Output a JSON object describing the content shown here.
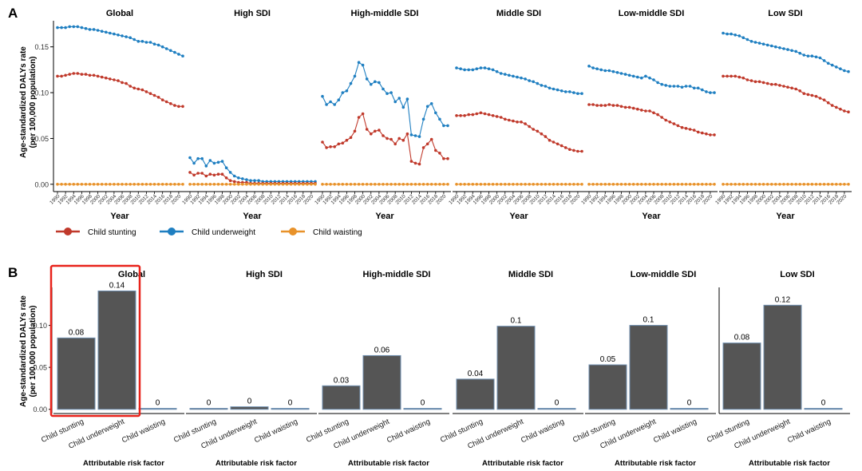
{
  "panel_labels": {
    "a": "A",
    "b": "B"
  },
  "colors": {
    "stunting": "#c0392b",
    "underweight": "#1f7fc1",
    "waisting": "#e8922a",
    "bar": "#555555",
    "bar_edge": "#6f8fb0",
    "highlight": "#e8231b"
  },
  "legend": {
    "stunting": "Child stunting",
    "underweight": "Child underweight",
    "waisting": "Child waisting"
  },
  "chart_data": [
    {
      "type": "line",
      "panel": "A",
      "ylabel_line1": "Age-standardized DALYs rate",
      "ylabel_line2": "(per 100,000 population)",
      "xlabel": "Year",
      "ylim": [
        -0.008,
        0.175
      ],
      "yticks": [
        0.0,
        0.05,
        0.1,
        0.15
      ],
      "ytick_labels": [
        "0.00",
        "0.05",
        "0.10",
        "0.15"
      ],
      "x": [
        1990,
        1991,
        1992,
        1993,
        1994,
        1995,
        1996,
        1997,
        1998,
        1999,
        2000,
        2001,
        2002,
        2003,
        2004,
        2005,
        2006,
        2007,
        2008,
        2009,
        2010,
        2011,
        2012,
        2013,
        2014,
        2015,
        2016,
        2017,
        2018,
        2019,
        2020,
        2021
      ],
      "xtick_labels": [
        "1990",
        "1992",
        "1994",
        "1996",
        "1998",
        "2000",
        "2002",
        "2004",
        "2006",
        "2008",
        "2010",
        "2012",
        "2014",
        "2016",
        "2018",
        "2020"
      ],
      "facets": [
        {
          "title": "Global",
          "stunting": [
            0.118,
            0.118,
            0.119,
            0.12,
            0.121,
            0.121,
            0.12,
            0.12,
            0.119,
            0.119,
            0.118,
            0.117,
            0.116,
            0.115,
            0.114,
            0.113,
            0.111,
            0.11,
            0.107,
            0.105,
            0.104,
            0.103,
            0.101,
            0.099,
            0.097,
            0.095,
            0.092,
            0.09,
            0.088,
            0.086,
            0.085,
            0.085
          ],
          "underweight": [
            0.171,
            0.171,
            0.171,
            0.172,
            0.172,
            0.172,
            0.171,
            0.17,
            0.169,
            0.169,
            0.168,
            0.167,
            0.166,
            0.165,
            0.164,
            0.163,
            0.162,
            0.161,
            0.16,
            0.158,
            0.156,
            0.156,
            0.155,
            0.155,
            0.153,
            0.152,
            0.15,
            0.148,
            0.146,
            0.144,
            0.142,
            0.14
          ]
        },
        {
          "title": "High SDI",
          "stunting": [
            0.013,
            0.01,
            0.012,
            0.012,
            0.009,
            0.011,
            0.01,
            0.011,
            0.011,
            0.007,
            0.004,
            0.003,
            0.002,
            0.002,
            0.002,
            0.001,
            0.001,
            0.001,
            0.001,
            0.001,
            0.001,
            0.001,
            0.001,
            0.001,
            0.001,
            0.001,
            0.001,
            0.001,
            0.001,
            0.001,
            0.001,
            0.001
          ],
          "underweight": [
            0.029,
            0.023,
            0.028,
            0.028,
            0.02,
            0.026,
            0.023,
            0.024,
            0.025,
            0.018,
            0.013,
            0.009,
            0.007,
            0.006,
            0.005,
            0.004,
            0.004,
            0.004,
            0.003,
            0.003,
            0.003,
            0.003,
            0.003,
            0.003,
            0.003,
            0.003,
            0.003,
            0.003,
            0.003,
            0.003,
            0.003,
            0.003
          ]
        },
        {
          "title": "High-middle SDI",
          "stunting": [
            0.046,
            0.04,
            0.041,
            0.041,
            0.044,
            0.045,
            0.048,
            0.051,
            0.058,
            0.073,
            0.077,
            0.06,
            0.055,
            0.058,
            0.059,
            0.053,
            0.05,
            0.049,
            0.044,
            0.05,
            0.048,
            0.055,
            0.025,
            0.023,
            0.022,
            0.04,
            0.044,
            0.049,
            0.037,
            0.034,
            0.028,
            0.028
          ],
          "underweight": [
            0.096,
            0.087,
            0.09,
            0.087,
            0.092,
            0.1,
            0.102,
            0.11,
            0.118,
            0.133,
            0.13,
            0.115,
            0.109,
            0.112,
            0.111,
            0.104,
            0.099,
            0.1,
            0.09,
            0.094,
            0.084,
            0.093,
            0.054,
            0.053,
            0.052,
            0.071,
            0.085,
            0.088,
            0.078,
            0.071,
            0.064,
            0.064
          ]
        },
        {
          "title": "Middle SDI",
          "stunting": [
            0.075,
            0.075,
            0.075,
            0.076,
            0.076,
            0.077,
            0.078,
            0.077,
            0.076,
            0.075,
            0.074,
            0.073,
            0.071,
            0.07,
            0.069,
            0.068,
            0.068,
            0.066,
            0.063,
            0.06,
            0.058,
            0.055,
            0.052,
            0.048,
            0.046,
            0.044,
            0.042,
            0.04,
            0.038,
            0.037,
            0.036,
            0.036
          ],
          "underweight": [
            0.127,
            0.126,
            0.125,
            0.125,
            0.125,
            0.126,
            0.127,
            0.127,
            0.126,
            0.125,
            0.123,
            0.121,
            0.12,
            0.119,
            0.118,
            0.117,
            0.116,
            0.115,
            0.113,
            0.112,
            0.11,
            0.108,
            0.107,
            0.105,
            0.104,
            0.103,
            0.102,
            0.101,
            0.101,
            0.1,
            0.099,
            0.099
          ]
        },
        {
          "title": "Low-middle SDI",
          "stunting": [
            0.087,
            0.087,
            0.086,
            0.086,
            0.086,
            0.087,
            0.086,
            0.086,
            0.085,
            0.084,
            0.084,
            0.083,
            0.082,
            0.081,
            0.08,
            0.08,
            0.078,
            0.076,
            0.073,
            0.07,
            0.068,
            0.066,
            0.064,
            0.062,
            0.061,
            0.06,
            0.059,
            0.057,
            0.056,
            0.055,
            0.054,
            0.054
          ],
          "underweight": [
            0.129,
            0.127,
            0.126,
            0.125,
            0.124,
            0.124,
            0.123,
            0.122,
            0.121,
            0.12,
            0.119,
            0.118,
            0.117,
            0.116,
            0.118,
            0.116,
            0.114,
            0.111,
            0.109,
            0.108,
            0.107,
            0.107,
            0.107,
            0.106,
            0.107,
            0.107,
            0.105,
            0.105,
            0.103,
            0.101,
            0.1,
            0.1
          ]
        },
        {
          "title": "Low SDI",
          "stunting": [
            0.118,
            0.118,
            0.118,
            0.118,
            0.117,
            0.116,
            0.114,
            0.113,
            0.112,
            0.112,
            0.111,
            0.11,
            0.109,
            0.109,
            0.108,
            0.107,
            0.106,
            0.105,
            0.104,
            0.102,
            0.099,
            0.098,
            0.097,
            0.096,
            0.094,
            0.092,
            0.089,
            0.086,
            0.084,
            0.082,
            0.08,
            0.079
          ],
          "underweight": [
            0.165,
            0.164,
            0.164,
            0.163,
            0.162,
            0.16,
            0.158,
            0.156,
            0.155,
            0.154,
            0.153,
            0.152,
            0.151,
            0.15,
            0.149,
            0.148,
            0.147,
            0.146,
            0.145,
            0.143,
            0.141,
            0.14,
            0.14,
            0.139,
            0.138,
            0.135,
            0.132,
            0.13,
            0.128,
            0.126,
            0.124,
            0.123
          ]
        }
      ],
      "waisting_value": 0.0
    },
    {
      "type": "bar",
      "panel": "B",
      "ylabel_line1": "Age-standardized DALYs rate",
      "ylabel_line2": "(per 100,000 population)",
      "xlabel": "Attributable risk factor",
      "ylim": [
        -0.005,
        0.15
      ],
      "yticks": [
        0.0,
        0.05,
        0.1
      ],
      "ytick_labels": [
        "0.00",
        "0.05",
        "0.10"
      ],
      "categories": [
        "Child stunting",
        "Child underweight",
        "Child waisting"
      ],
      "highlighted_facet": "Global",
      "facets": [
        {
          "title": "Global",
          "values": [
            0.085,
            0.141,
            0.0
          ],
          "labels": [
            "0.08",
            "0.14",
            "0"
          ]
        },
        {
          "title": "High SDI",
          "values": [
            0.001,
            0.003,
            0.0
          ],
          "labels": [
            "0",
            "0",
            "0"
          ]
        },
        {
          "title": "High-middle SDI",
          "values": [
            0.028,
            0.064,
            0.0
          ],
          "labels": [
            "0.03",
            "0.06",
            "0"
          ]
        },
        {
          "title": "Middle SDI",
          "values": [
            0.036,
            0.099,
            0.0
          ],
          "labels": [
            "0.04",
            "0.1",
            "0"
          ]
        },
        {
          "title": "Low-middle SDI",
          "values": [
            0.053,
            0.1,
            0.0
          ],
          "labels": [
            "0.05",
            "0.1",
            "0"
          ]
        },
        {
          "title": "Low SDI",
          "values": [
            0.079,
            0.124,
            0.0
          ],
          "labels": [
            "0.08",
            "0.12",
            "0"
          ]
        }
      ]
    }
  ]
}
